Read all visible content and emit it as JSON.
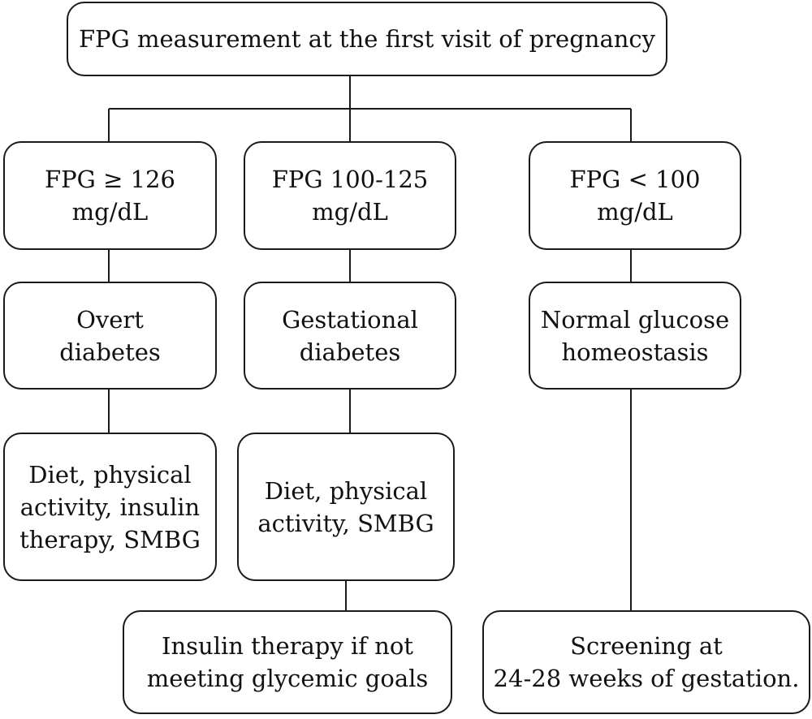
{
  "nodes": {
    "root": "FPG measurement at the first visit of pregnancy",
    "fpg_high": "FPG ≥ 126\nmg/dL",
    "fpg_mid": "FPG 100-125\nmg/dL",
    "fpg_low": "FPG < 100\nmg/dL",
    "overt": "Overt\ndiabetes",
    "gestational": "Gestational\ndiabetes",
    "normal": "Normal glucose\nhomeostasis",
    "treat_overt": "Diet, physical\nactivity, insulin\ntherapy, SMBG",
    "treat_gestational": "Diet, physical\nactivity, SMBG",
    "insulin_if_needed": "Insulin therapy if not\nmeeting glycemic goals",
    "screening": "Screening at\n24-28 weeks of gestation."
  }
}
